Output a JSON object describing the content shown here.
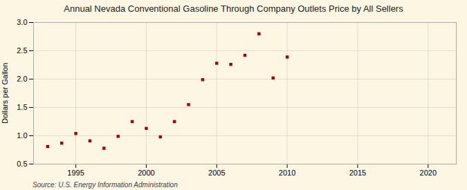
{
  "chart_data": {
    "type": "scatter",
    "title": "Annual Nevada Conventional Gasoline Through Company Outlets Price by All Sellers",
    "ylabel": "Dollars per Gallon",
    "caption": "Source: U.S. Energy Information Administration",
    "x": [
      1993,
      1994,
      1995,
      1996,
      1997,
      1998,
      1999,
      2000,
      2001,
      2002,
      2003,
      2004,
      2005,
      2006,
      2007,
      2008,
      2009,
      2010
    ],
    "values": [
      0.81,
      0.87,
      1.04,
      0.91,
      0.78,
      0.99,
      1.25,
      1.13,
      0.98,
      1.25,
      1.55,
      1.99,
      2.28,
      2.26,
      2.42,
      2.8,
      2.02,
      2.39
    ],
    "color": "#aa0000",
    "marker": "square",
    "grid": true,
    "xlim": [
      1992,
      2022
    ],
    "xticks": [
      1995,
      2000,
      2005,
      2010,
      2015,
      2020
    ],
    "ylim": [
      0.5,
      3.0
    ],
    "yticks": [
      0.5,
      {
        "value": 1.0,
        "label": "1.0"
      },
      1.5,
      {
        "value": 2.0,
        "label": "2.0"
      },
      2.5,
      {
        "value": 3.0,
        "label": "3.0"
      }
    ]
  }
}
